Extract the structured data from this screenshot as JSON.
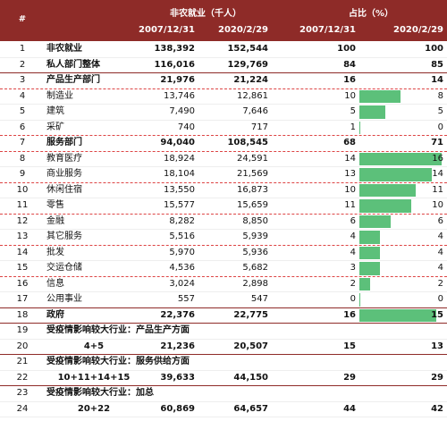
{
  "header": {
    "index": "#",
    "employment": "非农就业（千人）",
    "share": "占比（%）",
    "employment_dates": [
      "2007/12/31",
      "2020/2/29"
    ],
    "share_dates": [
      "2007/12/31",
      "2020/2/29"
    ]
  },
  "table": {
    "rows": [
      [
        "1",
        "非农就业",
        "138,392",
        "152,544",
        100,
        100
      ],
      [
        "2",
        "私人部门整体",
        "116,016",
        "129,769",
        84,
        85
      ],
      [
        "3",
        "产品生产部门",
        "21,976",
        "21,224",
        16,
        14
      ],
      [
        "4",
        "制造业",
        "13,746",
        "12,861",
        10,
        8
      ],
      [
        "5",
        "建筑",
        "7,490",
        "7,646",
        5,
        5
      ],
      [
        "6",
        "采矿",
        "740",
        "717",
        1,
        0
      ],
      [
        "7",
        "服务部门",
        "94,040",
        "108,545",
        68,
        71
      ],
      [
        "8",
        "教育医疗",
        "18,924",
        "24,591",
        14,
        16
      ],
      [
        "9",
        "商业服务",
        "18,104",
        "21,569",
        13,
        14
      ],
      [
        "10",
        "休闲住宿",
        "13,550",
        "16,873",
        10,
        11
      ],
      [
        "11",
        "零售",
        "15,577",
        "15,659",
        11,
        10
      ],
      [
        "12",
        "金融",
        "8,282",
        "8,850",
        6,
        6
      ],
      [
        "13",
        "其它服务",
        "5,516",
        "5,939",
        4,
        4
      ],
      [
        "14",
        "批发",
        "5,970",
        "5,936",
        4,
        4
      ],
      [
        "15",
        "交运仓储",
        "4,536",
        "5,682",
        3,
        4
      ],
      [
        "16",
        "信息",
        "3,024",
        "2,898",
        2,
        2
      ],
      [
        "17",
        "公用事业",
        "557",
        "547",
        0,
        0
      ],
      [
        "18",
        "政府",
        "22,376",
        "22,775",
        16,
        15
      ],
      [
        "19",
        "受疫情影响较大行业：产品生产方面"
      ],
      [
        "20",
        "4+5",
        "21,236",
        "20,507",
        15,
        13
      ],
      [
        "21",
        "受疫情影响较大行业：服务供给方面"
      ],
      [
        "22",
        "10+11+14+15",
        "39,633",
        "44,150",
        29,
        29
      ],
      [
        "23",
        "受疫情影响较大行业：加总"
      ],
      [
        "24",
        "20+22",
        "60,869",
        "64,657",
        44,
        42
      ]
    ]
  }
}
